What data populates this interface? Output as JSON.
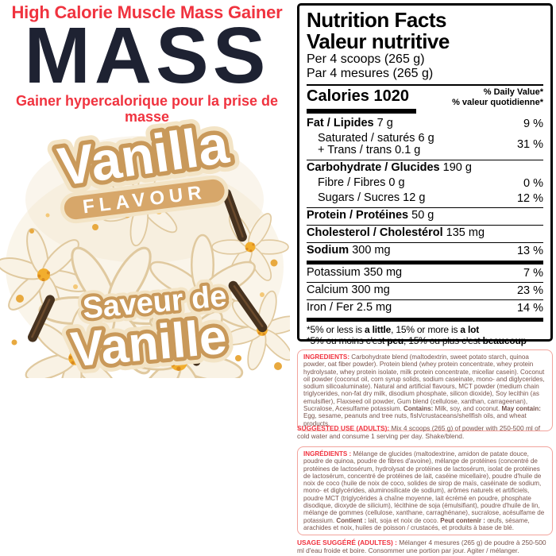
{
  "brand": {
    "tagline_en": "High Calorie Muscle Mass Gainer",
    "product_name": "MASS",
    "tagline_fr": "Gainer hypercalorique pour la prise de masse",
    "flavour_en_word": "Vanilla",
    "flavour_en_sub": "FLAVOUR",
    "flavour_fr_line1": "Saveur de",
    "flavour_fr_line2": "Vanille"
  },
  "colors": {
    "accent_red": "#f0333f",
    "brand_navy": "#1e2232",
    "bubble_tan": "#c9995a",
    "band_tan": "#d7a76a",
    "box_border_pink": "#f2a39c",
    "ingredients_text": "#7a544c"
  },
  "nutrition": {
    "title_en": "Nutrition Facts",
    "title_fr": "Valeur nutritive",
    "serving_en": "Per 4 scoops (265 g)",
    "serving_fr": "Par 4 mesures (265 g)",
    "calories_label": "Calories 1020",
    "dv_header_en": "% Daily Value*",
    "dv_header_fr": "% valeur quotidienne*",
    "rows": [
      {
        "lines": [
          {
            "bold": "Fat / Lipides",
            "rest": "7 g"
          }
        ],
        "dv": "9 %",
        "rule": "none"
      },
      {
        "lines": [
          {
            "rest": "Saturated / saturés 6 g",
            "indent": true
          },
          {
            "rest": "+ Trans / trans 0.1 g",
            "indent": true
          }
        ],
        "dv": "31 %",
        "rule": "medium"
      },
      {
        "lines": [
          {
            "bold": "Carbohydrate / Glucides",
            "rest": "190 g"
          }
        ],
        "dv": "",
        "rule": "none"
      },
      {
        "lines": [
          {
            "rest": "Fibre / Fibres 0 g",
            "indent": true
          }
        ],
        "dv": "0 %",
        "rule": "none"
      },
      {
        "lines": [
          {
            "rest": "Sugars / Sucres 12 g",
            "indent": true
          }
        ],
        "dv": "12 %",
        "rule": "medium"
      },
      {
        "lines": [
          {
            "bold": "Protein / Protéines",
            "rest": "50 g"
          }
        ],
        "dv": "",
        "rule": "medium"
      },
      {
        "lines": [
          {
            "bold": "Cholesterol / Cholestérol",
            "rest": "135 mg"
          }
        ],
        "dv": "",
        "rule": "medium"
      },
      {
        "lines": [
          {
            "bold": "Sodium",
            "rest": "300 mg"
          }
        ],
        "dv": "13 %",
        "rule": "thick"
      },
      {
        "lines": [
          {
            "rest": "Potassium 350 mg"
          }
        ],
        "dv": "7 %",
        "rule": "medium"
      },
      {
        "lines": [
          {
            "rest": "Calcium 300 mg"
          }
        ],
        "dv": "23 %",
        "rule": "medium"
      },
      {
        "lines": [
          {
            "rest": "Iron / Fer 2.5 mg"
          }
        ],
        "dv": "14 %",
        "rule": "thick"
      }
    ],
    "footnote_en_parts": [
      {
        "t": "*5% or less is "
      },
      {
        "s": "seg-bold",
        "t": "a little"
      },
      {
        "t": ", 15% or more is "
      },
      {
        "s": "seg-bold",
        "t": "a lot"
      }
    ],
    "footnote_fr_parts": [
      {
        "t": "*5% ou moins c'est "
      },
      {
        "s": "seg-bold",
        "t": "peu"
      },
      {
        "t": ", 15% ou plus c'est "
      },
      {
        "s": "seg-bold",
        "t": "beaucoup"
      }
    ]
  },
  "ingredients_en": {
    "parts": [
      {
        "s": "seg-label",
        "t": "INGREDIENTS: "
      },
      {
        "t": "Carbohydrate blend (maltodextrin, sweet potato starch, quinoa powder, oat fiber powder). Protein blend (whey protein concentrate, whey protein hydrolysate, whey protein isolate, milk protein concentrate, micellar casein). Coconut oil powder (coconut oil, corn syrup solids, sodium caseinate, mono- and diglycerides, sodium silicoaluminate). Natural and artificial flavours, MCT powder (medium chain triglycerides, non-fat dry milk, disodium phosphate, silicon dioxide), Soy lecithin (as emulsifier), Flaxseed oil powder, Gum blend (cellulose, xanthan, carrageenan), Sucralose, Acesulfame potassium. "
      },
      {
        "s": "seg-bold",
        "t": "Contains:"
      },
      {
        "t": " Milk, soy, and coconut. "
      },
      {
        "s": "seg-bold",
        "t": "May contain:"
      },
      {
        "t": " Egg, sesame, peanuts and tree nuts, fish/crustaceans/shellfish oils, and wheat products."
      }
    ]
  },
  "suggested_use_en": {
    "parts": [
      {
        "s": "seg-label",
        "t": "SUGGESTED USE (ADULTS): "
      },
      {
        "t": "Mix 4 scoops (265 g) of powder with 250-500 ml of cold water and consume 1 serving per day. Shake/blend."
      }
    ]
  },
  "ingredients_fr": {
    "parts": [
      {
        "s": "seg-label",
        "t": "INGRÉDIENTS : "
      },
      {
        "t": "Mélange de glucides (maltodextrine, amidon de patate douce, poudre de quinoa, poudre de fibres d'avoine), mélange de protéines (concentré de protéines de lactosérum, hydrolysat de protéines de lactosérum, isolat de protéines de lactosérum, concentré de protéines de lait, caséine micellaire), poudre d'huile de noix de coco (huile de noix de coco, solides de sirop de maïs, caséinate de sodium, mono- et diglycérides, aluminosilicate de sodium), arômes naturels et artificiels, poudre MCT (triglycérides à chaîne moyenne, lait écrémé en poudre, phosphate disodique, dioxyde de silicium), lécithine de soja (émulsifiant), poudre d'huile de lin, mélange de gommes (cellulose, xanthane, carraghénane), sucralose, acésulfame de potassium. "
      },
      {
        "s": "seg-bold",
        "t": "Contient :"
      },
      {
        "t": " lait, soja et noix de coco. "
      },
      {
        "s": "seg-bold",
        "t": "Peut contenir :"
      },
      {
        "t": " œufs, sésame, arachides et noix, huiles de poisson / crustacés, et produits à base de blé."
      }
    ]
  },
  "usage_fr": {
    "parts": [
      {
        "s": "seg-label",
        "t": "USAGE SUGGÉRÉ (ADULTES) : "
      },
      {
        "t": "Mélanger 4 mesures (265 g) de poudre à 250-500 ml d'eau froide et boire. Consommer une portion par jour. Agiter / mélanger."
      }
    ]
  }
}
